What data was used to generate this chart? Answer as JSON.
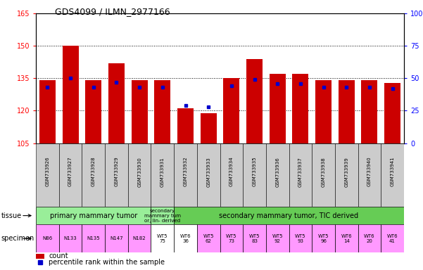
{
  "title": "GDS4099 / ILMN_2977166",
  "samples": [
    "GSM733926",
    "GSM733927",
    "GSM733928",
    "GSM733929",
    "GSM733930",
    "GSM733931",
    "GSM733932",
    "GSM733933",
    "GSM733934",
    "GSM733935",
    "GSM733936",
    "GSM733937",
    "GSM733938",
    "GSM733939",
    "GSM733940",
    "GSM733941"
  ],
  "counts": [
    134,
    150,
    134,
    142,
    134,
    134,
    121,
    119,
    135,
    144,
    137,
    137,
    134,
    134,
    134,
    133
  ],
  "percentile_ranks": [
    43,
    50,
    43,
    47,
    43,
    43,
    29,
    28,
    44,
    49,
    46,
    46,
    43,
    43,
    43,
    42
  ],
  "ymin": 105,
  "ymax": 165,
  "yticks": [
    105,
    120,
    135,
    150,
    165
  ],
  "bar_color": "#cc0000",
  "dot_color": "#0000cc",
  "xtick_bg": "#cccccc",
  "tissue_data": [
    {
      "start": 0,
      "end": 5,
      "color": "#99ee99",
      "label": "primary mammary tumor",
      "fontsize": 7
    },
    {
      "start": 5,
      "end": 6,
      "color": "#99ee99",
      "label": "secondary\nmammary tum\nor, lin- derived",
      "fontsize": 5
    },
    {
      "start": 6,
      "end": 16,
      "color": "#66cc55",
      "label": "secondary mammary tumor, TIC derived",
      "fontsize": 7
    }
  ],
  "specimen_labels": [
    "N86",
    "N133",
    "N135",
    "N147",
    "N182",
    "WT5\n75",
    "WT6\n36",
    "WT5\n62",
    "WT5\n73",
    "WT5\n83",
    "WT5\n92",
    "WT5\n93",
    "WT5\n96",
    "WT6\n14",
    "WT6\n20",
    "WT6\n41"
  ],
  "specimen_colors": [
    "#ff99ff",
    "#ff99ff",
    "#ff99ff",
    "#ff99ff",
    "#ff99ff",
    "#ffffff",
    "#ffffff",
    "#ff99ff",
    "#ff99ff",
    "#ff99ff",
    "#ff99ff",
    "#ff99ff",
    "#ff99ff",
    "#ff99ff",
    "#ff99ff",
    "#ff99ff"
  ]
}
